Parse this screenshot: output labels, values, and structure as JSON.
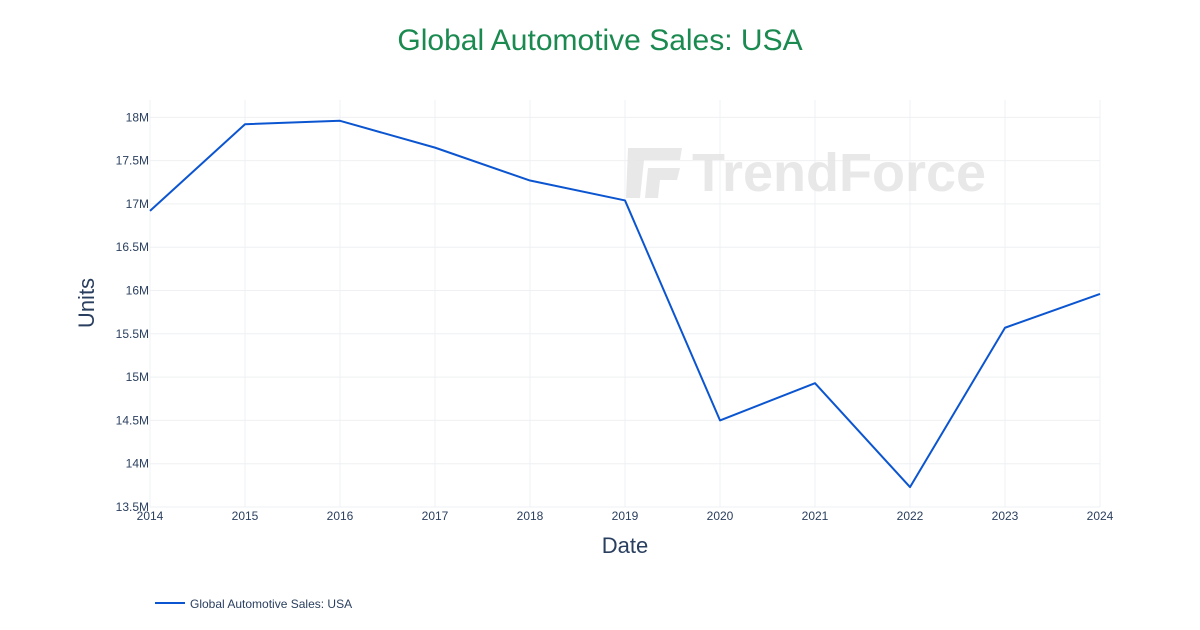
{
  "chart_data": {
    "type": "line",
    "title": "Global Automotive Sales: USA",
    "title_color": "#1a8a50",
    "xlabel": "Date",
    "ylabel": "Units",
    "x": [
      2014,
      2015,
      2016,
      2017,
      2018,
      2019,
      2020,
      2021,
      2022,
      2023,
      2024
    ],
    "series": [
      {
        "name": "Global Automotive Sales: USA",
        "color": "#0b55d0",
        "values": [
          16920000,
          17920000,
          17960000,
          17650000,
          17270000,
          17040000,
          14500000,
          14930000,
          13730000,
          15570000,
          15960000
        ]
      }
    ],
    "xlim": [
      2014,
      2024
    ],
    "ylim": [
      13500000,
      18200000
    ],
    "x_ticks": [
      2014,
      2015,
      2016,
      2017,
      2018,
      2019,
      2020,
      2021,
      2022,
      2023,
      2024
    ],
    "y_ticks": [
      {
        "value": 13500000,
        "label": "13.5M"
      },
      {
        "value": 14000000,
        "label": "14M"
      },
      {
        "value": 14500000,
        "label": "14.5M"
      },
      {
        "value": 15000000,
        "label": "15M"
      },
      {
        "value": 15500000,
        "label": "15.5M"
      },
      {
        "value": 16000000,
        "label": "16M"
      },
      {
        "value": 16500000,
        "label": "16.5M"
      },
      {
        "value": 17000000,
        "label": "17M"
      },
      {
        "value": 17500000,
        "label": "17.5M"
      },
      {
        "value": 18000000,
        "label": "18M"
      }
    ],
    "grid": true,
    "legend_position": "bottom-left",
    "watermark": "TrendForce"
  }
}
